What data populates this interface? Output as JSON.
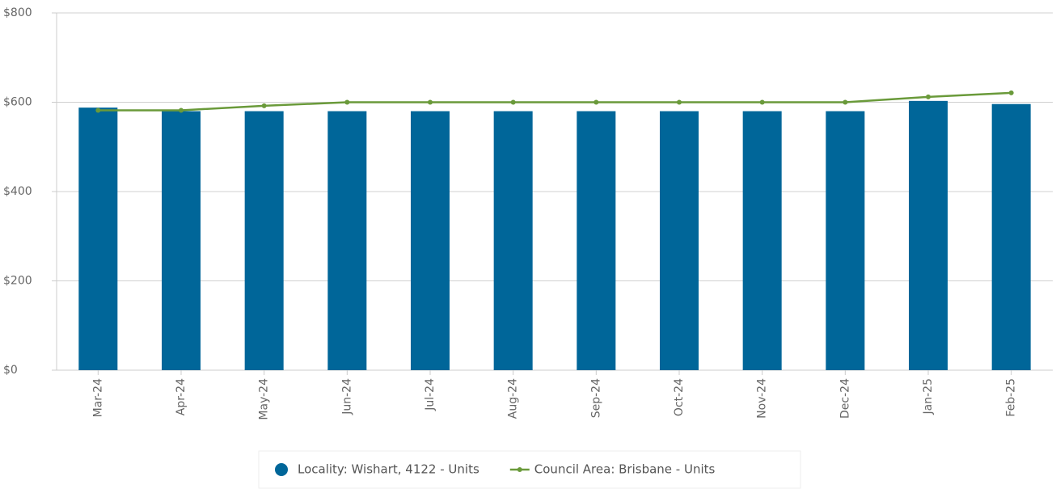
{
  "chart_data": {
    "type": "bar",
    "categories": [
      "Mar-24",
      "Apr-24",
      "May-24",
      "Jun-24",
      "Jul-24",
      "Aug-24",
      "Sep-24",
      "Oct-24",
      "Nov-24",
      "Dec-24",
      "Jan-25",
      "Feb-25"
    ],
    "series": [
      {
        "name": "Locality: Wishart, 4122 - Units",
        "type": "bar",
        "color": "#006699",
        "values": [
          588,
          580,
          580,
          580,
          580,
          580,
          580,
          580,
          580,
          580,
          603,
          596
        ]
      },
      {
        "name": "Council Area: Brisbane - Units",
        "type": "line",
        "color": "#6a9a3a",
        "values": [
          582,
          582,
          592,
          600,
          600,
          600,
          600,
          600,
          600,
          600,
          612,
          621
        ]
      }
    ],
    "ylim": [
      0,
      800
    ],
    "yticks": [
      {
        "value": 0,
        "label": "$0"
      },
      {
        "value": 200,
        "label": "$200"
      },
      {
        "value": 400,
        "label": "$400"
      },
      {
        "value": 600,
        "label": "$600"
      },
      {
        "value": 800,
        "label": "$800"
      }
    ],
    "grid": true,
    "legend": "bottom"
  }
}
